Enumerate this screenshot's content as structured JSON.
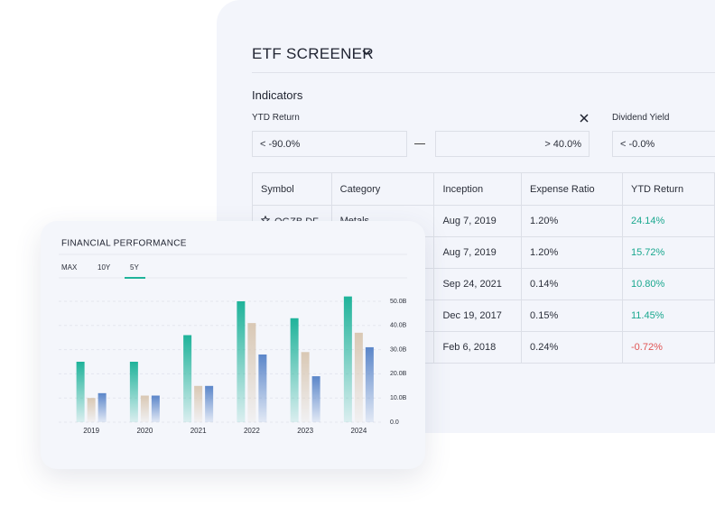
{
  "screener": {
    "title": "ETF SCREENER",
    "section": "Indicators",
    "filters": [
      {
        "label": "YTD Return",
        "min": "< -90.0%",
        "max": "> 40.0%"
      },
      {
        "label": "Dividend Yield",
        "min": "< -0.0%"
      }
    ],
    "table": {
      "columns": [
        "Symbol",
        "Category",
        "Inception",
        "Expense Ratio",
        "YTD Return"
      ],
      "rows": [
        [
          "OGZB.DF",
          "Metals",
          "Aug 7, 2019",
          "1.20%",
          "24.14%"
        ],
        [
          null,
          null,
          "Aug 7, 2019",
          "1.20%",
          "15.72%"
        ],
        [
          null,
          null,
          "Sep 24, 2021",
          "0.14%",
          "10.80%"
        ],
        [
          null,
          null,
          "Dec 19, 2017",
          "0.15%",
          "11.45%"
        ],
        [
          null,
          null,
          "Feb 6, 2018",
          "0.24%",
          "-0.72%"
        ]
      ],
      "positive_color": "#1aa88f",
      "negative_color": "#e05454"
    }
  },
  "chart_data": {
    "type": "bar",
    "title": "FINANCIAL PERFORMANCE",
    "tabs": [
      "MAX",
      "10Y",
      "5Y"
    ],
    "active_tab": 2,
    "categories": [
      "2019",
      "2020",
      "2021",
      "2022",
      "2023",
      "2024"
    ],
    "series": [
      {
        "color": "#1fb39a",
        "values": [
          25,
          25,
          36,
          50,
          43,
          52
        ]
      },
      {
        "color": "#d9c8b4",
        "values": [
          10,
          11,
          15,
          41,
          29,
          37
        ]
      },
      {
        "color": "#5b86c9",
        "values": [
          12,
          11,
          15,
          28,
          19,
          31
        ]
      }
    ],
    "ylim": [
      0,
      55
    ],
    "yticks": [
      {
        "value": 0,
        "label": "0.0"
      },
      {
        "value": 10,
        "label": "10.0B"
      },
      {
        "value": 20,
        "label": "20.0B"
      },
      {
        "value": 30,
        "label": "30.0B"
      },
      {
        "value": 40,
        "label": "40.0B"
      },
      {
        "value": 50,
        "label": "50.0B"
      }
    ],
    "grid": true
  }
}
